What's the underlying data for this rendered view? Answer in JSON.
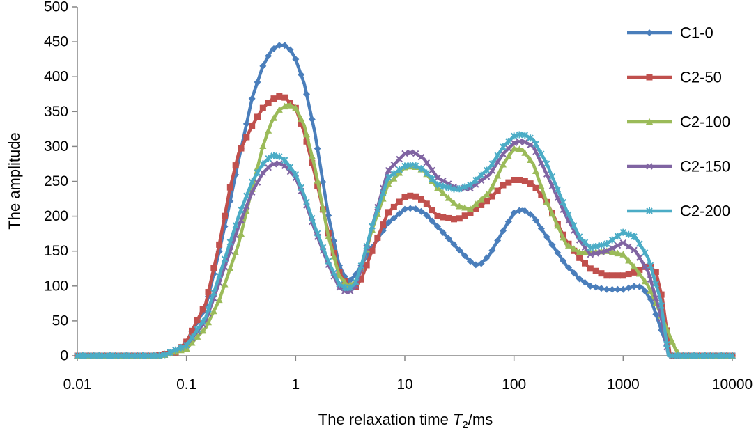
{
  "chart_data": {
    "type": "line",
    "title": "",
    "xlabel": {
      "prefix": "The relaxation time ",
      "symbol": "T",
      "subscript": "2",
      "suffix": "/ms"
    },
    "ylabel": "The amplitude",
    "xscale": "log",
    "xlim": [
      0.01,
      10000
    ],
    "ylim": [
      0,
      500
    ],
    "x_ticks": [
      "0.01",
      "0.1",
      "1",
      "10",
      "100",
      "1000",
      "10000"
    ],
    "y_ticks": [
      "0",
      "50",
      "100",
      "150",
      "200",
      "250",
      "300",
      "350",
      "400",
      "450",
      "500"
    ],
    "grid": false,
    "legend_position": "right",
    "series": [
      {
        "name": "C1-0",
        "color": "#4a7ebb",
        "marker": "diamond",
        "points": [
          [
            0.01,
            0
          ],
          [
            0.05,
            0
          ],
          [
            0.08,
            5
          ],
          [
            0.1,
            20
          ],
          [
            0.15,
            70
          ],
          [
            0.2,
            150
          ],
          [
            0.25,
            220
          ],
          [
            0.3,
            280
          ],
          [
            0.4,
            370
          ],
          [
            0.5,
            415
          ],
          [
            0.6,
            438
          ],
          [
            0.7,
            445
          ],
          [
            0.8,
            445
          ],
          [
            0.9,
            438
          ],
          [
            1,
            425
          ],
          [
            1.2,
            390
          ],
          [
            1.5,
            320
          ],
          [
            2,
            200
          ],
          [
            2.5,
            130
          ],
          [
            3,
            105
          ],
          [
            3.5,
            115
          ],
          [
            4,
            130
          ],
          [
            5,
            155
          ],
          [
            7,
            190
          ],
          [
            10,
            210
          ],
          [
            12,
            212
          ],
          [
            15,
            205
          ],
          [
            20,
            185
          ],
          [
            30,
            155
          ],
          [
            40,
            135
          ],
          [
            45,
            130
          ],
          [
            50,
            132
          ],
          [
            60,
            145
          ],
          [
            80,
            180
          ],
          [
            100,
            205
          ],
          [
            120,
            210
          ],
          [
            150,
            200
          ],
          [
            200,
            170
          ],
          [
            300,
            130
          ],
          [
            400,
            110
          ],
          [
            500,
            100
          ],
          [
            700,
            95
          ],
          [
            1000,
            95
          ],
          [
            1300,
            100
          ],
          [
            1500,
            98
          ],
          [
            1800,
            80
          ],
          [
            2200,
            40
          ],
          [
            2700,
            0
          ],
          [
            10000,
            0
          ]
        ]
      },
      {
        "name": "C2-50",
        "color": "#c0504d",
        "marker": "square",
        "points": [
          [
            0.01,
            0
          ],
          [
            0.05,
            0
          ],
          [
            0.08,
            5
          ],
          [
            0.1,
            20
          ],
          [
            0.15,
            75
          ],
          [
            0.2,
            160
          ],
          [
            0.25,
            240
          ],
          [
            0.3,
            290
          ],
          [
            0.4,
            330
          ],
          [
            0.5,
            355
          ],
          [
            0.6,
            367
          ],
          [
            0.7,
            372
          ],
          [
            0.8,
            370
          ],
          [
            1,
            355
          ],
          [
            1.2,
            320
          ],
          [
            1.5,
            260
          ],
          [
            2,
            175
          ],
          [
            2.5,
            120
          ],
          [
            3,
            100
          ],
          [
            3.5,
            98
          ],
          [
            4,
            110
          ],
          [
            5,
            150
          ],
          [
            7,
            205
          ],
          [
            10,
            228
          ],
          [
            12,
            230
          ],
          [
            15,
            222
          ],
          [
            20,
            200
          ],
          [
            30,
            195
          ],
          [
            40,
            205
          ],
          [
            60,
            225
          ],
          [
            80,
            245
          ],
          [
            100,
            252
          ],
          [
            120,
            252
          ],
          [
            150,
            245
          ],
          [
            200,
            220
          ],
          [
            300,
            165
          ],
          [
            400,
            140
          ],
          [
            500,
            125
          ],
          [
            700,
            115
          ],
          [
            1000,
            115
          ],
          [
            1300,
            120
          ],
          [
            1700,
            130
          ],
          [
            2000,
            120
          ],
          [
            2300,
            80
          ],
          [
            2700,
            0
          ],
          [
            10000,
            0
          ]
        ]
      },
      {
        "name": "C2-100",
        "color": "#9bbb59",
        "marker": "triangle",
        "points": [
          [
            0.01,
            0
          ],
          [
            0.06,
            0
          ],
          [
            0.1,
            10
          ],
          [
            0.15,
            40
          ],
          [
            0.2,
            80
          ],
          [
            0.3,
            160
          ],
          [
            0.4,
            240
          ],
          [
            0.5,
            300
          ],
          [
            0.6,
            335
          ],
          [
            0.7,
            352
          ],
          [
            0.85,
            360
          ],
          [
            1,
            355
          ],
          [
            1.2,
            330
          ],
          [
            1.5,
            270
          ],
          [
            2,
            170
          ],
          [
            2.5,
            115
          ],
          [
            3,
            100
          ],
          [
            3.5,
            105
          ],
          [
            4,
            125
          ],
          [
            5,
            180
          ],
          [
            7,
            245
          ],
          [
            10,
            270
          ],
          [
            12,
            272
          ],
          [
            15,
            265
          ],
          [
            20,
            240
          ],
          [
            30,
            215
          ],
          [
            40,
            210
          ],
          [
            60,
            235
          ],
          [
            80,
            275
          ],
          [
            100,
            297
          ],
          [
            120,
            295
          ],
          [
            150,
            275
          ],
          [
            200,
            220
          ],
          [
            300,
            160
          ],
          [
            400,
            148
          ],
          [
            500,
            148
          ],
          [
            700,
            150
          ],
          [
            1000,
            145
          ],
          [
            1300,
            125
          ],
          [
            1700,
            100
          ],
          [
            2200,
            60
          ],
          [
            3000,
            10
          ],
          [
            3300,
            0
          ],
          [
            10000,
            0
          ]
        ]
      },
      {
        "name": "C2-150",
        "color": "#8064a2",
        "marker": "x",
        "points": [
          [
            0.01,
            0
          ],
          [
            0.06,
            0
          ],
          [
            0.1,
            15
          ],
          [
            0.15,
            50
          ],
          [
            0.2,
            105
          ],
          [
            0.3,
            185
          ],
          [
            0.4,
            235
          ],
          [
            0.5,
            262
          ],
          [
            0.6,
            274
          ],
          [
            0.7,
            276
          ],
          [
            0.8,
            272
          ],
          [
            1,
            255
          ],
          [
            1.2,
            225
          ],
          [
            1.5,
            180
          ],
          [
            2,
            130
          ],
          [
            2.5,
            98
          ],
          [
            3,
            90
          ],
          [
            3.5,
            98
          ],
          [
            4,
            125
          ],
          [
            5,
            185
          ],
          [
            7,
            265
          ],
          [
            10,
            290
          ],
          [
            12,
            292
          ],
          [
            15,
            282
          ],
          [
            20,
            255
          ],
          [
            30,
            240
          ],
          [
            40,
            240
          ],
          [
            60,
            260
          ],
          [
            80,
            290
          ],
          [
            100,
            305
          ],
          [
            120,
            308
          ],
          [
            150,
            300
          ],
          [
            200,
            260
          ],
          [
            300,
            200
          ],
          [
            400,
            165
          ],
          [
            500,
            145
          ],
          [
            700,
            150
          ],
          [
            1000,
            162
          ],
          [
            1300,
            150
          ],
          [
            1700,
            120
          ],
          [
            2200,
            60
          ],
          [
            2600,
            0
          ],
          [
            10000,
            0
          ]
        ]
      },
      {
        "name": "C2-200",
        "color": "#4bacc6",
        "marker": "star",
        "points": [
          [
            0.01,
            0
          ],
          [
            0.06,
            0
          ],
          [
            0.1,
            15
          ],
          [
            0.15,
            55
          ],
          [
            0.2,
            115
          ],
          [
            0.3,
            200
          ],
          [
            0.4,
            250
          ],
          [
            0.5,
            275
          ],
          [
            0.6,
            287
          ],
          [
            0.7,
            286
          ],
          [
            0.8,
            280
          ],
          [
            1,
            260
          ],
          [
            1.2,
            230
          ],
          [
            1.5,
            185
          ],
          [
            2,
            135
          ],
          [
            2.5,
            103
          ],
          [
            3,
            95
          ],
          [
            3.5,
            103
          ],
          [
            4,
            130
          ],
          [
            5,
            185
          ],
          [
            7,
            255
          ],
          [
            10,
            272
          ],
          [
            12,
            274
          ],
          [
            15,
            266
          ],
          [
            20,
            245
          ],
          [
            30,
            238
          ],
          [
            40,
            245
          ],
          [
            60,
            270
          ],
          [
            80,
            300
          ],
          [
            100,
            315
          ],
          [
            120,
            318
          ],
          [
            150,
            310
          ],
          [
            200,
            275
          ],
          [
            300,
            210
          ],
          [
            400,
            170
          ],
          [
            500,
            155
          ],
          [
            700,
            160
          ],
          [
            1000,
            177
          ],
          [
            1300,
            170
          ],
          [
            1700,
            140
          ],
          [
            2200,
            80
          ],
          [
            2600,
            0
          ],
          [
            10000,
            0
          ]
        ]
      }
    ]
  }
}
